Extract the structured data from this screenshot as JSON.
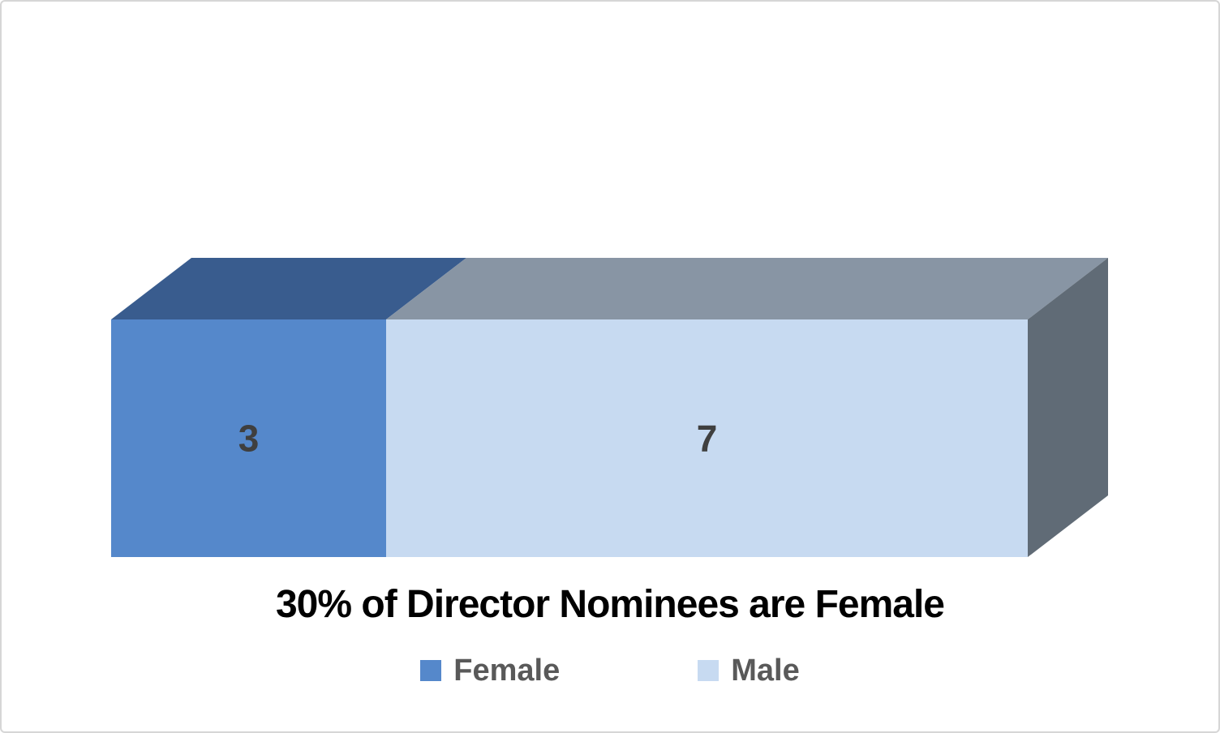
{
  "canvas": {
    "background": "#FFFFFF",
    "border_color": "#D6D6D6"
  },
  "chart_data": {
    "type": "bar",
    "subtype": "3d-horizontal-stacked",
    "title": "30% of Director Nominees are Female",
    "title_color": "#000000",
    "orientation": "horizontal",
    "categories": [
      "Director Nominees"
    ],
    "series": [
      {
        "name": "Female",
        "value": 3,
        "front_color": "#5588CB",
        "top_color": "#395C8E"
      },
      {
        "name": "Male",
        "value": 7,
        "front_color": "#C7DAF1",
        "top_color": "#8895A4"
      }
    ],
    "side_color": "#606B76",
    "total": 10,
    "female_share_pct": 30,
    "data_labels": {
      "show": true,
      "color": "#3F3F3F",
      "values": [
        3,
        7
      ]
    },
    "legend": {
      "position": "bottom",
      "text_color": "#595959",
      "entries": [
        "Female",
        "Male"
      ]
    },
    "axes_visible": false,
    "grid": false,
    "xlim": [
      0,
      10
    ]
  }
}
